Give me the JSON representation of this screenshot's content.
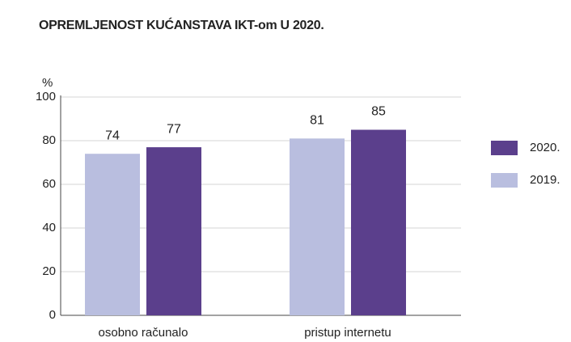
{
  "chart_data": {
    "type": "bar",
    "title": "OPREMLJENOST KUĆANSTAVA IKT-om U 2020.",
    "y_label": "%",
    "categories": [
      "osobno računalo",
      "pristup internetu"
    ],
    "series": [
      {
        "name": "2019.",
        "color": "#b9bedf",
        "values": [
          74,
          81
        ]
      },
      {
        "name": "2020.",
        "color": "#5b3f8c",
        "values": [
          77,
          85
        ]
      }
    ],
    "ylim": [
      0,
      100
    ],
    "yticks": [
      0,
      20,
      40,
      60,
      80,
      100
    ],
    "grid": true
  }
}
